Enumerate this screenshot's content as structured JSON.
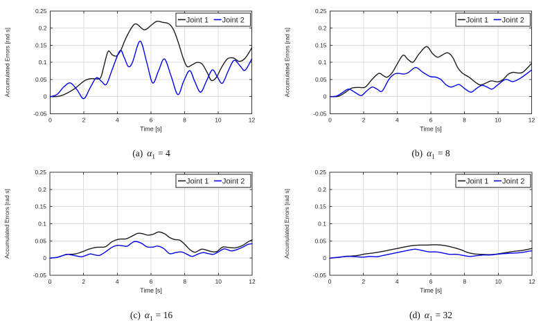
{
  "figure": {
    "background": "#ffffff",
    "grid_color": "#dcdcdc",
    "axis_color": "#333333",
    "tick_label_color": "#262626",
    "legend_border_color": "#1a1a1a",
    "legend_background": "#ffffff",
    "joint1_color": "#1a1a1a",
    "joint2_color": "#0000ee"
  },
  "chart_data": [
    {
      "type": "line",
      "caption": {
        "index": "(a)",
        "symbol": "α",
        "subscript": "1",
        "equals_value": "= 4"
      },
      "xlabel": "Time [s]",
      "ylabel": "Accumulated Errors [rad s]",
      "xlim": [
        0,
        12
      ],
      "ylim": [
        -0.05,
        0.25
      ],
      "xticks": [
        0,
        2,
        4,
        6,
        8,
        10,
        12
      ],
      "xtick_labels": [
        "0",
        "2",
        "4",
        "6",
        "8",
        "10",
        "12"
      ],
      "yticks": [
        -0.05,
        0,
        0.05,
        0.1,
        0.15,
        0.2,
        0.25
      ],
      "ytick_labels": [
        "-0.05",
        "0",
        "0.05",
        "0.1",
        "0.15",
        "0.2",
        "0.25"
      ],
      "grid": true,
      "legend": {
        "position": "top-right",
        "entries": [
          "Joint 1",
          "Joint 2"
        ]
      },
      "series": [
        {
          "name": "Joint 1",
          "color": "#1a1a1a",
          "x": [
            0,
            0.5,
            1.0,
            1.5,
            2.0,
            2.35,
            2.7,
            3.0,
            3.2,
            3.45,
            3.7,
            3.95,
            4.2,
            4.5,
            4.9,
            5.15,
            5.6,
            6.0,
            6.35,
            6.7,
            7.05,
            7.35,
            7.65,
            7.9,
            8.15,
            8.45,
            8.75,
            9.05,
            9.35,
            9.6,
            9.9,
            10.2,
            10.55,
            10.9,
            11.25,
            11.6,
            12.0
          ],
          "y": [
            0,
            0.001,
            0.01,
            0.025,
            0.045,
            0.052,
            0.052,
            0.055,
            0.09,
            0.132,
            0.122,
            0.119,
            0.135,
            0.17,
            0.205,
            0.212,
            0.195,
            0.208,
            0.22,
            0.217,
            0.213,
            0.195,
            0.155,
            0.115,
            0.088,
            0.093,
            0.1,
            0.095,
            0.07,
            0.047,
            0.057,
            0.085,
            0.11,
            0.113,
            0.103,
            0.112,
            0.142
          ]
        },
        {
          "name": "Joint 2",
          "color": "#0000ee",
          "x": [
            0,
            0.4,
            0.8,
            1.2,
            1.6,
            2.0,
            2.4,
            2.75,
            3.05,
            3.35,
            3.7,
            4.15,
            4.4,
            4.65,
            4.9,
            5.35,
            5.75,
            6.1,
            6.45,
            6.8,
            7.2,
            7.6,
            7.95,
            8.3,
            8.6,
            8.95,
            9.3,
            9.65,
            9.95,
            10.25,
            10.6,
            10.95,
            11.3,
            11.6,
            12.0
          ],
          "y": [
            0,
            0.006,
            0.028,
            0.04,
            0.02,
            -0.006,
            0.028,
            0.055,
            0.045,
            0.036,
            0.08,
            0.134,
            0.115,
            0.088,
            0.1,
            0.162,
            0.1,
            0.04,
            0.075,
            0.11,
            0.06,
            0.006,
            0.045,
            0.076,
            0.045,
            0.013,
            0.045,
            0.078,
            0.058,
            0.039,
            0.075,
            0.106,
            0.09,
            0.077,
            0.11
          ]
        }
      ]
    },
    {
      "type": "line",
      "caption": {
        "index": "(b)",
        "symbol": "α",
        "subscript": "1",
        "equals_value": "= 8"
      },
      "xlabel": "Time [s]",
      "ylabel": "Accumulated Errors [rad s]",
      "xlim": [
        0,
        12
      ],
      "ylim": [
        -0.05,
        0.25
      ],
      "xticks": [
        0,
        2,
        4,
        6,
        8,
        10,
        12
      ],
      "xtick_labels": [
        "0",
        "2",
        "4",
        "6",
        "8",
        "10",
        "12"
      ],
      "yticks": [
        -0.05,
        0,
        0.05,
        0.1,
        0.15,
        0.2,
        0.25
      ],
      "ytick_labels": [
        "-0.05",
        "0",
        "0.05",
        "0.1",
        "0.15",
        "0.2",
        "0.25"
      ],
      "grid": true,
      "legend": {
        "position": "top-right",
        "entries": [
          "Joint 1",
          "Joint 2"
        ]
      },
      "series": [
        {
          "name": "Joint 1",
          "color": "#1a1a1a",
          "x": [
            0,
            0.5,
            0.9,
            1.3,
            1.7,
            2.1,
            2.5,
            2.9,
            3.15,
            3.4,
            3.7,
            4.0,
            4.35,
            4.65,
            4.95,
            5.3,
            5.75,
            6.1,
            6.4,
            6.7,
            7.0,
            7.3,
            7.6,
            7.9,
            8.3,
            8.6,
            8.95,
            9.3,
            9.6,
            10.0,
            10.3,
            10.6,
            10.9,
            11.2,
            11.5,
            12.0
          ],
          "y": [
            0,
            0.001,
            0.012,
            0.025,
            0.027,
            0.028,
            0.05,
            0.068,
            0.062,
            0.057,
            0.07,
            0.095,
            0.121,
            0.108,
            0.101,
            0.125,
            0.146,
            0.126,
            0.115,
            0.122,
            0.128,
            0.115,
            0.085,
            0.068,
            0.056,
            0.044,
            0.034,
            0.04,
            0.046,
            0.043,
            0.05,
            0.065,
            0.071,
            0.069,
            0.072,
            0.097
          ]
        },
        {
          "name": "Joint 2",
          "color": "#0000ee",
          "x": [
            0,
            0.4,
            0.75,
            1.1,
            1.5,
            1.85,
            2.15,
            2.5,
            2.8,
            3.1,
            3.5,
            3.8,
            4.05,
            4.4,
            4.65,
            5.1,
            5.5,
            5.95,
            6.3,
            6.6,
            6.9,
            7.2,
            7.45,
            7.7,
            8.05,
            8.4,
            8.75,
            9.05,
            9.35,
            9.65,
            10.0,
            10.45,
            10.9,
            11.4,
            12.0
          ],
          "y": [
            0,
            0.002,
            0.012,
            0.022,
            0.012,
            0.003,
            0.015,
            0.028,
            0.022,
            0.016,
            0.05,
            0.065,
            0.068,
            0.066,
            0.07,
            0.085,
            0.072,
            0.059,
            0.057,
            0.05,
            0.035,
            0.028,
            0.032,
            0.035,
            0.022,
            0.013,
            0.025,
            0.033,
            0.028,
            0.022,
            0.035,
            0.05,
            0.044,
            0.056,
            0.078
          ]
        }
      ]
    },
    {
      "type": "line",
      "caption": {
        "index": "(c)",
        "symbol": "α",
        "subscript": "1",
        "equals_value": "= 16"
      },
      "xlabel": "Time [s]",
      "ylabel": "Accumulated Errors [rad s]",
      "xlim": [
        0,
        12
      ],
      "ylim": [
        -0.05,
        0.25
      ],
      "xticks": [
        0,
        2,
        4,
        6,
        8,
        10,
        12
      ],
      "xtick_labels": [
        "0",
        "2",
        "4",
        "6",
        "8",
        "10",
        "12"
      ],
      "yticks": [
        -0.05,
        0,
        0.05,
        0.1,
        0.15,
        0.2,
        0.25
      ],
      "ytick_labels": [
        "-0.05",
        "0",
        "0.05",
        "0.1",
        "0.15",
        "0.2",
        "0.25"
      ],
      "grid": true,
      "legend": {
        "position": "top-right",
        "entries": [
          "Joint 1",
          "Joint 2"
        ]
      },
      "series": [
        {
          "name": "Joint 1",
          "color": "#1a1a1a",
          "x": [
            0,
            0.4,
            0.8,
            1.1,
            1.5,
            1.9,
            2.3,
            2.7,
            3.0,
            3.3,
            3.7,
            4.1,
            4.5,
            4.8,
            5.2,
            5.5,
            5.8,
            6.1,
            6.45,
            6.8,
            7.1,
            7.4,
            7.7,
            8.0,
            8.3,
            8.6,
            9.0,
            9.3,
            9.6,
            9.9,
            10.25,
            10.6,
            11.0,
            11.4,
            11.75,
            12.0
          ],
          "y": [
            0,
            0.002,
            0.008,
            0.011,
            0.012,
            0.018,
            0.026,
            0.031,
            0.032,
            0.033,
            0.048,
            0.055,
            0.056,
            0.062,
            0.072,
            0.071,
            0.067,
            0.069,
            0.076,
            0.071,
            0.06,
            0.054,
            0.052,
            0.04,
            0.025,
            0.017,
            0.026,
            0.023,
            0.019,
            0.019,
            0.032,
            0.031,
            0.03,
            0.036,
            0.047,
            0.053
          ]
        },
        {
          "name": "Joint 2",
          "color": "#0000ee",
          "x": [
            0,
            0.4,
            0.7,
            1.0,
            1.3,
            1.6,
            1.9,
            2.15,
            2.4,
            2.7,
            2.95,
            3.3,
            3.7,
            4.0,
            4.3,
            4.6,
            5.0,
            5.4,
            5.75,
            6.1,
            6.4,
            6.75,
            7.1,
            7.45,
            7.8,
            8.1,
            8.45,
            8.8,
            9.1,
            9.4,
            9.7,
            10.0,
            10.35,
            10.75,
            11.1,
            11.45,
            11.75,
            12.0
          ],
          "y": [
            0,
            0.002,
            0.006,
            0.011,
            0.009,
            0.006,
            0.004,
            0.008,
            0.012,
            0.009,
            0.008,
            0.018,
            0.032,
            0.037,
            0.036,
            0.035,
            0.048,
            0.044,
            0.033,
            0.032,
            0.035,
            0.028,
            0.013,
            0.016,
            0.018,
            0.012,
            0.005,
            0.012,
            0.016,
            0.013,
            0.011,
            0.018,
            0.027,
            0.021,
            0.025,
            0.032,
            0.04,
            0.042
          ]
        }
      ]
    },
    {
      "type": "line",
      "caption": {
        "index": "(d)",
        "symbol": "α",
        "subscript": "1",
        "equals_value": "= 32"
      },
      "xlabel": "Time [s]",
      "ylabel": "Accumulated Errors [rad s]",
      "xlim": [
        0,
        12
      ],
      "ylim": [
        -0.05,
        0.25
      ],
      "xticks": [
        0,
        2,
        4,
        6,
        8,
        10,
        12
      ],
      "xtick_labels": [
        "0",
        "2",
        "4",
        "6",
        "8",
        "10",
        "12"
      ],
      "yticks": [
        -0.05,
        0,
        0.05,
        0.1,
        0.15,
        0.2,
        0.25
      ],
      "ytick_labels": [
        "-0.05",
        "0",
        "0.05",
        "0.1",
        "0.15",
        "0.2",
        "0.25"
      ],
      "grid": true,
      "legend": {
        "position": "top-right",
        "entries": [
          "Joint 1",
          "Joint 2"
        ]
      },
      "series": [
        {
          "name": "Joint 1",
          "color": "#1a1a1a",
          "x": [
            0,
            0.5,
            0.9,
            1.3,
            1.7,
            2.1,
            2.6,
            3.1,
            3.6,
            4.1,
            4.6,
            5.0,
            5.4,
            5.8,
            6.2,
            6.6,
            7.0,
            7.4,
            7.8,
            8.2,
            8.6,
            9.0,
            9.4,
            9.8,
            10.2,
            10.6,
            11.0,
            11.4,
            11.8,
            12.0
          ],
          "y": [
            0,
            0.002,
            0.005,
            0.006,
            0.008,
            0.012,
            0.015,
            0.019,
            0.024,
            0.029,
            0.034,
            0.037,
            0.038,
            0.038,
            0.039,
            0.038,
            0.035,
            0.03,
            0.024,
            0.016,
            0.012,
            0.011,
            0.01,
            0.011,
            0.014,
            0.017,
            0.02,
            0.022,
            0.026,
            0.028
          ]
        },
        {
          "name": "Joint 2",
          "color": "#0000ee",
          "x": [
            0,
            0.4,
            0.8,
            1.2,
            1.6,
            2.0,
            2.4,
            2.8,
            3.2,
            3.6,
            4.0,
            4.4,
            4.8,
            5.1,
            5.5,
            5.9,
            6.3,
            6.7,
            7.1,
            7.5,
            7.9,
            8.3,
            8.7,
            9.1,
            9.5,
            9.9,
            10.3,
            10.7,
            11.1,
            11.5,
            11.8,
            12.0
          ],
          "y": [
            0,
            0.002,
            0.004,
            0.005,
            0.004,
            0.003,
            0.005,
            0.004,
            0.008,
            0.012,
            0.016,
            0.02,
            0.024,
            0.026,
            0.022,
            0.018,
            0.018,
            0.015,
            0.011,
            0.011,
            0.008,
            0.005,
            0.007,
            0.009,
            0.009,
            0.011,
            0.013,
            0.014,
            0.015,
            0.017,
            0.02,
            0.021
          ]
        }
      ]
    }
  ]
}
